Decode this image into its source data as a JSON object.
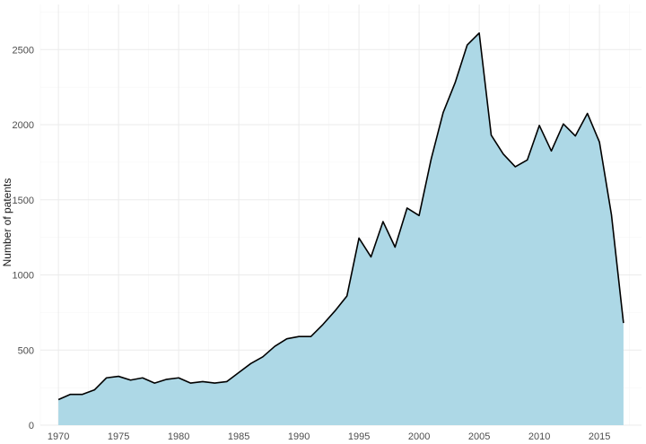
{
  "chart_data": {
    "type": "area",
    "title": "",
    "xlabel": "",
    "ylabel": "Number of patents",
    "xlim": [
      1968.5,
      2018.5
    ],
    "ylim": [
      0,
      2800
    ],
    "x_ticks": [
      1970,
      1975,
      1980,
      1985,
      1990,
      1995,
      2000,
      2005,
      2010,
      2015
    ],
    "y_ticks": [
      0,
      500,
      1000,
      1500,
      2000,
      2500
    ],
    "grid": true,
    "fill_color": "#add8e6",
    "line_color": "#000000",
    "x": [
      1970,
      1971,
      1972,
      1973,
      1974,
      1975,
      1976,
      1977,
      1978,
      1979,
      1980,
      1981,
      1982,
      1983,
      1984,
      1985,
      1986,
      1987,
      1988,
      1989,
      1990,
      1991,
      1992,
      1993,
      1994,
      1995,
      1996,
      1997,
      1998,
      1999,
      2000,
      2001,
      2002,
      2003,
      2004,
      2005,
      2006,
      2007,
      2008,
      2009,
      2010,
      2011,
      2012,
      2013,
      2014,
      2015,
      2016,
      2017
    ],
    "values": [
      170,
      205,
      205,
      235,
      315,
      325,
      300,
      315,
      280,
      305,
      315,
      280,
      290,
      280,
      290,
      350,
      410,
      455,
      525,
      575,
      590,
      590,
      670,
      760,
      860,
      1245,
      1120,
      1355,
      1185,
      1445,
      1395,
      1770,
      2080,
      2280,
      2530,
      2610,
      1930,
      1805,
      1720,
      1765,
      1995,
      1825,
      2005,
      1925,
      2075,
      1885,
      1400,
      680
    ]
  }
}
